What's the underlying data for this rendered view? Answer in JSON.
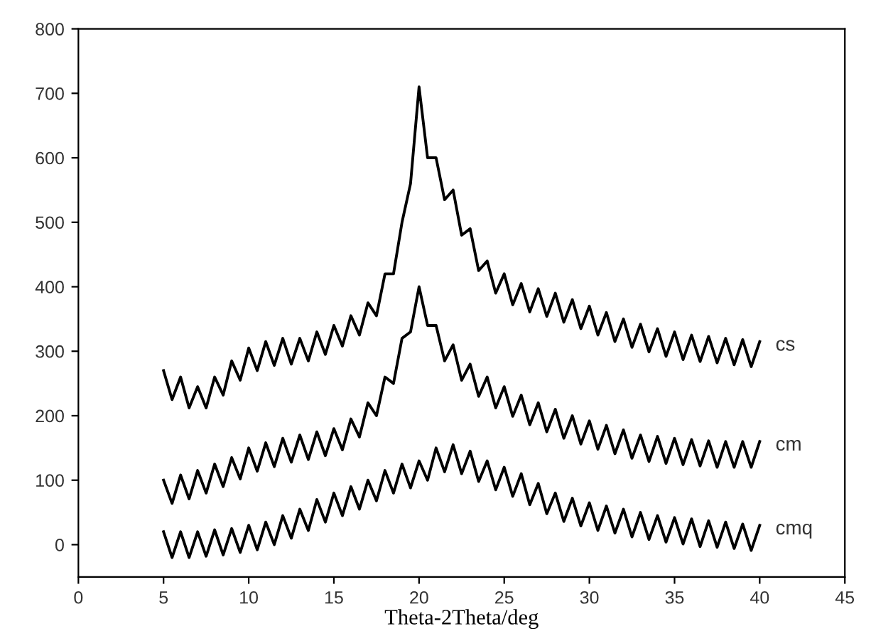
{
  "chart_data": {
    "type": "line",
    "xlabel": "Theta-2Theta/deg",
    "x": [
      5,
      5.5,
      6,
      6.5,
      7,
      7.5,
      8,
      8.5,
      9,
      9.5,
      10,
      10.5,
      11,
      11.5,
      12,
      12.5,
      13,
      13.5,
      14,
      14.5,
      15,
      15.5,
      16,
      16.5,
      17,
      17.5,
      18,
      18.5,
      19,
      19.5,
      20,
      20.5,
      21,
      21.5,
      22,
      22.5,
      23,
      23.5,
      24,
      24.5,
      25,
      25.5,
      26,
      26.5,
      27,
      27.5,
      28,
      28.5,
      29,
      29.5,
      30,
      30.5,
      31,
      31.5,
      32,
      32.5,
      33,
      33.5,
      34,
      34.5,
      35,
      35.5,
      36,
      36.5,
      37,
      37.5,
      38,
      38.5,
      39,
      39.5,
      40
    ],
    "series": [
      {
        "name": "cs",
        "color": "#000000",
        "values": [
          270,
          225,
          260,
          212,
          245,
          212,
          260,
          232,
          285,
          255,
          305,
          270,
          315,
          278,
          320,
          280,
          320,
          285,
          330,
          295,
          340,
          308,
          355,
          325,
          375,
          355,
          420,
          420,
          500,
          560,
          710,
          600,
          600,
          535,
          550,
          480,
          490,
          425,
          440,
          390,
          420,
          372,
          405,
          361,
          397,
          354,
          390,
          345,
          380,
          335,
          370,
          325,
          360,
          315,
          350,
          306,
          342,
          299,
          335,
          292,
          330,
          287,
          325,
          284,
          323,
          282,
          320,
          279,
          318,
          276,
          315
        ]
      },
      {
        "name": "cm",
        "color": "#000000",
        "values": [
          100,
          64,
          108,
          71,
          115,
          80,
          125,
          90,
          135,
          102,
          150,
          114,
          158,
          121,
          165,
          128,
          170,
          132,
          175,
          138,
          180,
          147,
          195,
          167,
          220,
          200,
          260,
          250,
          320,
          330,
          400,
          340,
          340,
          285,
          310,
          255,
          280,
          230,
          260,
          212,
          245,
          199,
          232,
          186,
          220,
          175,
          210,
          165,
          200,
          156,
          192,
          148,
          185,
          141,
          178,
          134,
          170,
          129,
          168,
          126,
          165,
          124,
          163,
          122,
          161,
          120,
          160,
          120,
          160,
          120,
          160
        ]
      },
      {
        "name": "cmq",
        "color": "#000000",
        "values": [
          20,
          -20,
          20,
          -20,
          20,
          -18,
          23,
          -16,
          25,
          -12,
          30,
          -8,
          35,
          0,
          45,
          10,
          55,
          22,
          70,
          35,
          80,
          45,
          90,
          55,
          100,
          68,
          115,
          80,
          125,
          88,
          130,
          100,
          150,
          113,
          155,
          110,
          145,
          98,
          130,
          85,
          120,
          75,
          110,
          62,
          95,
          48,
          80,
          36,
          72,
          29,
          65,
          22,
          60,
          18,
          55,
          12,
          50,
          8,
          45,
          4,
          42,
          1,
          40,
          -3,
          37,
          -4,
          35,
          -6,
          32,
          -9,
          30
        ]
      }
    ],
    "xlim": [
      0,
      45
    ],
    "ylim": [
      -50,
      800
    ],
    "xticks": [
      0,
      5,
      10,
      15,
      20,
      25,
      30,
      35,
      40,
      45
    ],
    "yticks": [
      0,
      100,
      200,
      300,
      400,
      500,
      600,
      700,
      800
    ],
    "grid": false,
    "legend": false,
    "marker": "none",
    "line_style": "solid"
  }
}
